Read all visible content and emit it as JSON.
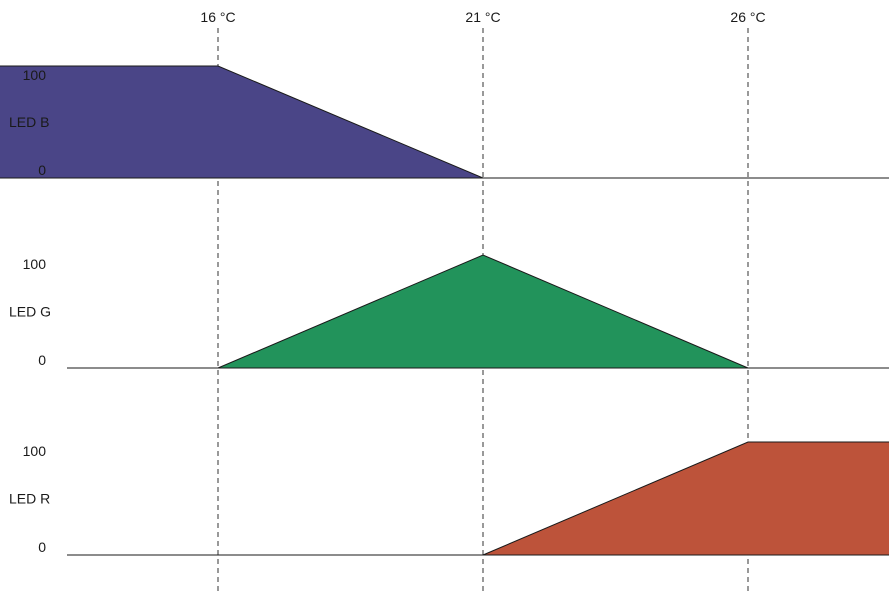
{
  "chart_data": {
    "type": "area",
    "x_axis": {
      "unit": "°C",
      "xlim": [
        10.3,
        41.0
      ],
      "ticks": [
        {
          "value": 16,
          "label": "16 °C"
        },
        {
          "value": 21,
          "label": "21 °C"
        },
        {
          "value": 26,
          "label": "26 °C"
        }
      ]
    },
    "ylim": [
      0,
      100
    ],
    "y_tick_labels": [
      "0",
      "100"
    ],
    "series": [
      {
        "name": "LED B",
        "color": "#4a4587",
        "points": [
          [
            10.3,
            100
          ],
          [
            16,
            100
          ],
          [
            21,
            0
          ],
          [
            41.0,
            0
          ]
        ]
      },
      {
        "name": "LED G",
        "color": "#22935b",
        "points": [
          [
            16,
            0
          ],
          [
            21,
            100
          ],
          [
            26,
            0
          ]
        ]
      },
      {
        "name": "LED R",
        "color": "#bd533a",
        "points": [
          [
            21,
            0
          ],
          [
            26,
            100
          ],
          [
            41.0,
            100
          ]
        ]
      }
    ],
    "grid": "dashed vertical guide lines at x ticks",
    "legend": "none (series names as left-side labels)"
  }
}
